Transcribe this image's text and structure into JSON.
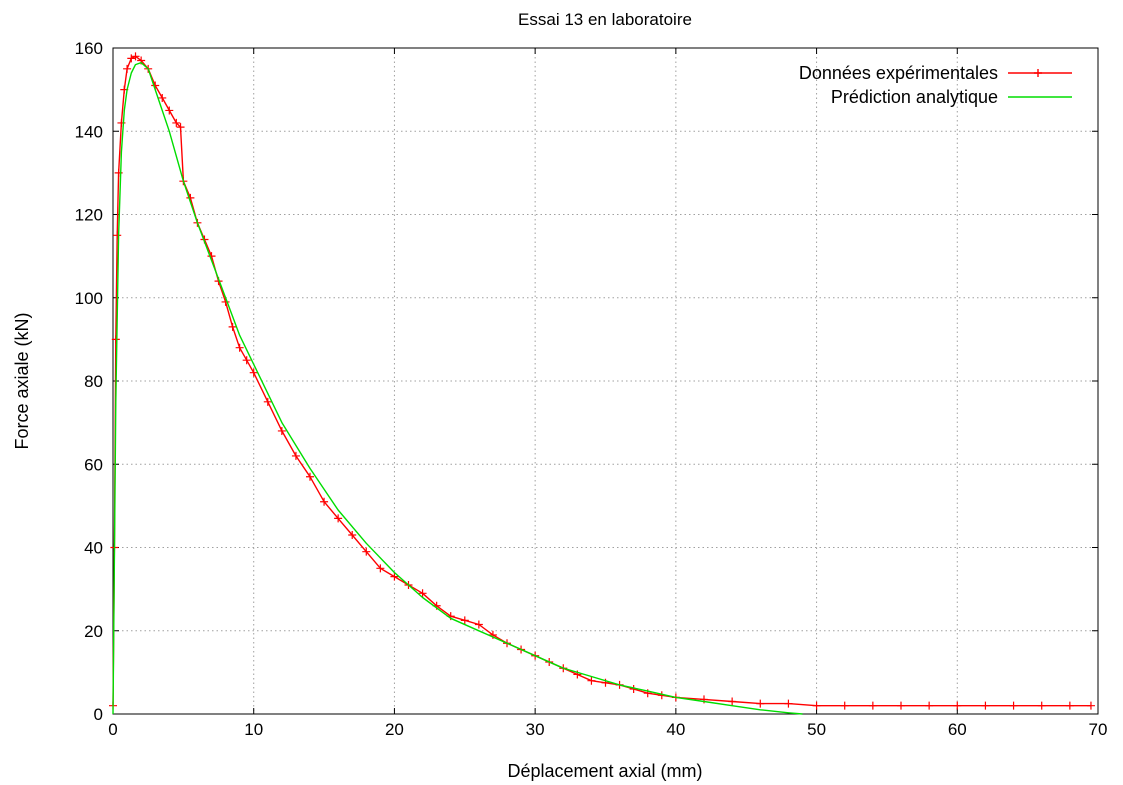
{
  "chart_data": {
    "type": "line",
    "title": "Essai 13 en laboratoire",
    "xlabel": "Déplacement axial (mm)",
    "ylabel": "Force axiale (kN)",
    "xlim": [
      0,
      70
    ],
    "ylim": [
      0,
      160
    ],
    "x_ticks": [
      0,
      10,
      20,
      30,
      40,
      50,
      60,
      70
    ],
    "y_ticks": [
      0,
      20,
      40,
      60,
      80,
      100,
      120,
      140,
      160
    ],
    "grid": true,
    "legend_position": "top-right",
    "series": [
      {
        "name": "Données expérimentales",
        "color": "#ff0000",
        "marker": "plus",
        "x": [
          0,
          0.1,
          0.2,
          0.3,
          0.4,
          0.6,
          0.8,
          1.0,
          1.3,
          1.6,
          2.0,
          2.5,
          3.0,
          3.5,
          4.0,
          4.5,
          4.8,
          5.0,
          5.5,
          6.0,
          6.5,
          7.0,
          7.5,
          8.0,
          8.5,
          9.0,
          9.5,
          10.0,
          11.0,
          12.0,
          13.0,
          14.0,
          15.0,
          16.0,
          17.0,
          18.0,
          19.0,
          20.0,
          21.0,
          22.0,
          23.0,
          24.0,
          25.0,
          26.0,
          27.0,
          28.0,
          29.0,
          30.0,
          31.0,
          32.0,
          33.0,
          34.0,
          35.0,
          36.0,
          37.0,
          38.0,
          39.0,
          40.0,
          42.0,
          44.0,
          46.0,
          48.0,
          50.0,
          52.0,
          54.0,
          56.0,
          58.0,
          60.0,
          62.0,
          64.0,
          66.0,
          68.0,
          69.5
        ],
        "y": [
          2,
          40,
          90,
          115,
          130,
          142,
          150,
          155,
          157.5,
          158,
          157,
          155,
          151,
          148,
          145,
          142,
          141,
          128,
          124,
          118,
          114,
          110,
          104,
          99,
          93,
          88,
          85,
          82,
          75,
          68,
          62,
          57,
          51,
          47,
          43,
          39,
          35,
          33,
          31,
          29,
          26,
          23.5,
          22.5,
          21.5,
          19,
          17,
          15.5,
          14,
          12.5,
          11,
          9.5,
          8,
          7.5,
          7,
          6,
          5,
          4.5,
          4,
          3.5,
          3,
          2.5,
          2.5,
          2,
          2,
          2,
          2,
          2,
          2,
          2,
          2,
          2,
          2,
          2
        ]
      },
      {
        "name": "Prédiction analytique",
        "color": "#00dd00",
        "marker": "none",
        "x": [
          0,
          0.2,
          0.4,
          0.6,
          0.8,
          1.0,
          1.3,
          1.6,
          2.0,
          2.5,
          3.0,
          4.0,
          5.0,
          6.0,
          7.0,
          8.0,
          9.0,
          10.0,
          12.0,
          14.0,
          16.0,
          18.0,
          20.0,
          22.0,
          24.0,
          26.0,
          28.0,
          30.0,
          32.0,
          34.0,
          36.0,
          38.0,
          40.0,
          42.0,
          44.0,
          46.0,
          48.0,
          49.0
        ],
        "y": [
          0,
          75,
          115,
          135,
          145,
          150,
          154,
          156,
          156.5,
          155,
          150,
          140,
          128,
          118,
          109,
          100,
          91,
          84,
          70,
          59,
          49,
          41,
          34,
          28,
          23,
          20,
          17,
          14,
          11,
          9,
          7,
          5.5,
          4,
          3,
          2,
          1,
          0.3,
          0
        ]
      }
    ]
  }
}
